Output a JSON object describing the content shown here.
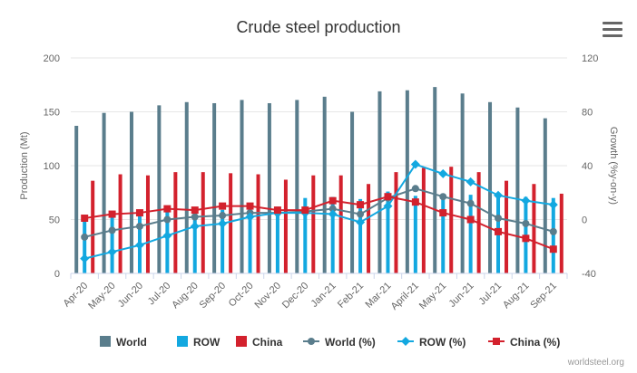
{
  "chart_data": {
    "type": "bar",
    "title": "Crude steel production",
    "ylabel": "Production (Mt)",
    "y2label": "Growth (%y-on-y)",
    "ylim": [
      0,
      200
    ],
    "y2lim": [
      -40,
      120
    ],
    "yticks": [
      0,
      50,
      100,
      150,
      200
    ],
    "y2ticks": [
      -40,
      0,
      40,
      80,
      120
    ],
    "grid": true,
    "legend_position": "bottom",
    "categories": [
      "Apr-20",
      "May-20",
      "Jun-20",
      "Jul-20",
      "Aug-20",
      "Sep-20",
      "Oct-20",
      "Nov-20",
      "Dec-20",
      "Jan-21",
      "Feb-21",
      "Mar-21",
      "April-21",
      "May-21",
      "Jun-21",
      "Jul-21",
      "Aug-21",
      "Sep-21"
    ],
    "series": [
      {
        "name": "World",
        "kind": "bar",
        "axis": "left",
        "color": "#5a7d8c",
        "values": [
          137,
          149,
          150,
          156,
          159,
          158,
          161,
          158,
          161,
          164,
          150,
          169,
          170,
          173,
          167,
          159,
          154,
          144
        ]
      },
      {
        "name": "ROW",
        "kind": "bar",
        "axis": "left",
        "color": "#13a8e0",
        "values": [
          51,
          56,
          56,
          58,
          58,
          59,
          61,
          62,
          70,
          71,
          69,
          76,
          72,
          70,
          73,
          71,
          71,
          70
        ]
      },
      {
        "name": "China",
        "kind": "bar",
        "axis": "left",
        "color": "#d3212d",
        "values": [
          86,
          92,
          91,
          94,
          94,
          93,
          92,
          87,
          91,
          91,
          83,
          94,
          98,
          99,
          94,
          86,
          83,
          74
        ]
      },
      {
        "name": "World (%)",
        "kind": "line",
        "axis": "right",
        "color": "#5a7d8c",
        "marker": "circle",
        "values": [
          -13,
          -8,
          -5,
          0,
          2,
          3,
          5,
          5,
          6,
          8,
          4,
          16,
          23,
          17,
          12,
          1,
          -3,
          -9
        ]
      },
      {
        "name": "ROW (%)",
        "kind": "line",
        "axis": "right",
        "color": "#13a8e0",
        "marker": "diamond",
        "values": [
          -29,
          -24,
          -19,
          -12,
          -5,
          -3,
          2,
          5,
          5,
          4,
          -2,
          10,
          41,
          34,
          28,
          18,
          14,
          11
        ]
      },
      {
        "name": "China (%)",
        "kind": "line",
        "axis": "right",
        "color": "#d3212d",
        "marker": "square",
        "values": [
          1,
          4,
          5,
          8,
          7,
          10,
          10,
          7,
          7,
          14,
          11,
          17,
          13,
          5,
          0,
          -9,
          -14,
          -22
        ]
      }
    ]
  },
  "ui": {
    "menu_icon": "hamburger-menu-icon",
    "credit": "worldsteel.org"
  }
}
